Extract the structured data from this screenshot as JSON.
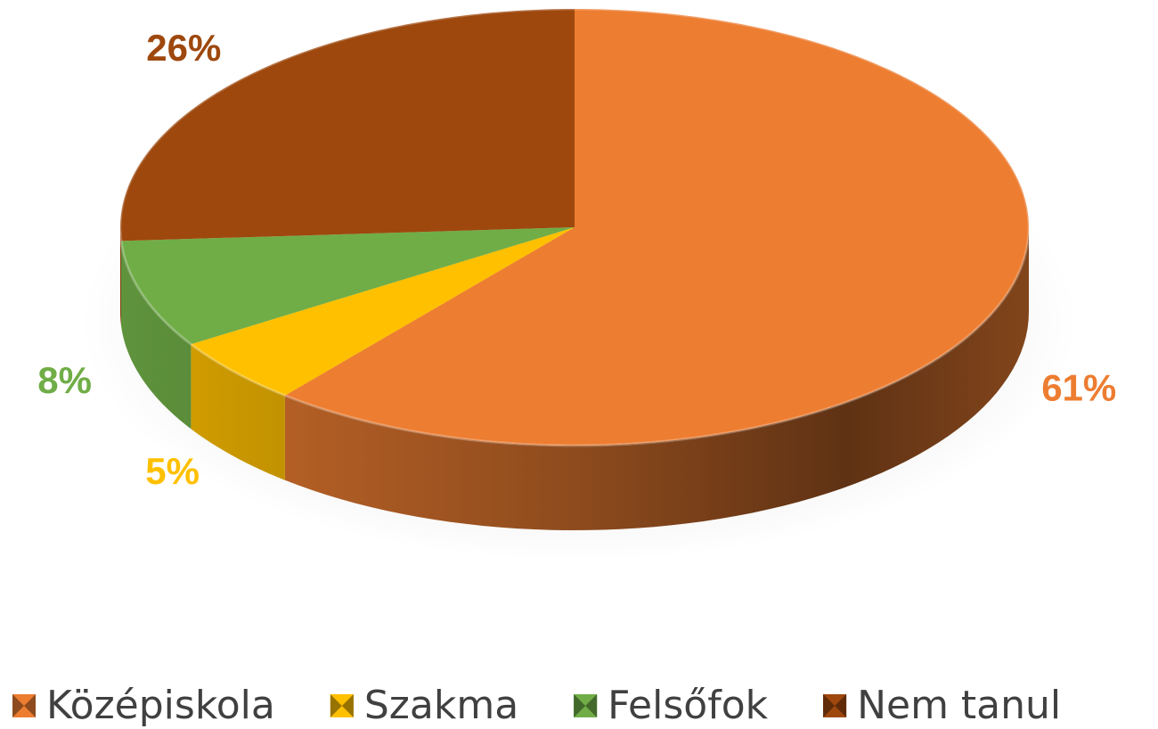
{
  "chart_data": {
    "type": "pie",
    "categories": [
      "Középiskola",
      "Szakma",
      "Felsőfok",
      "Nem tanul"
    ],
    "values": [
      61,
      5,
      8,
      26
    ],
    "value_labels": [
      "61%",
      "5%",
      "8%",
      "26%"
    ],
    "colors": [
      "#ED7D31",
      "#FFC000",
      "#70AD47",
      "#9E480E"
    ],
    "legend": "bottom"
  }
}
